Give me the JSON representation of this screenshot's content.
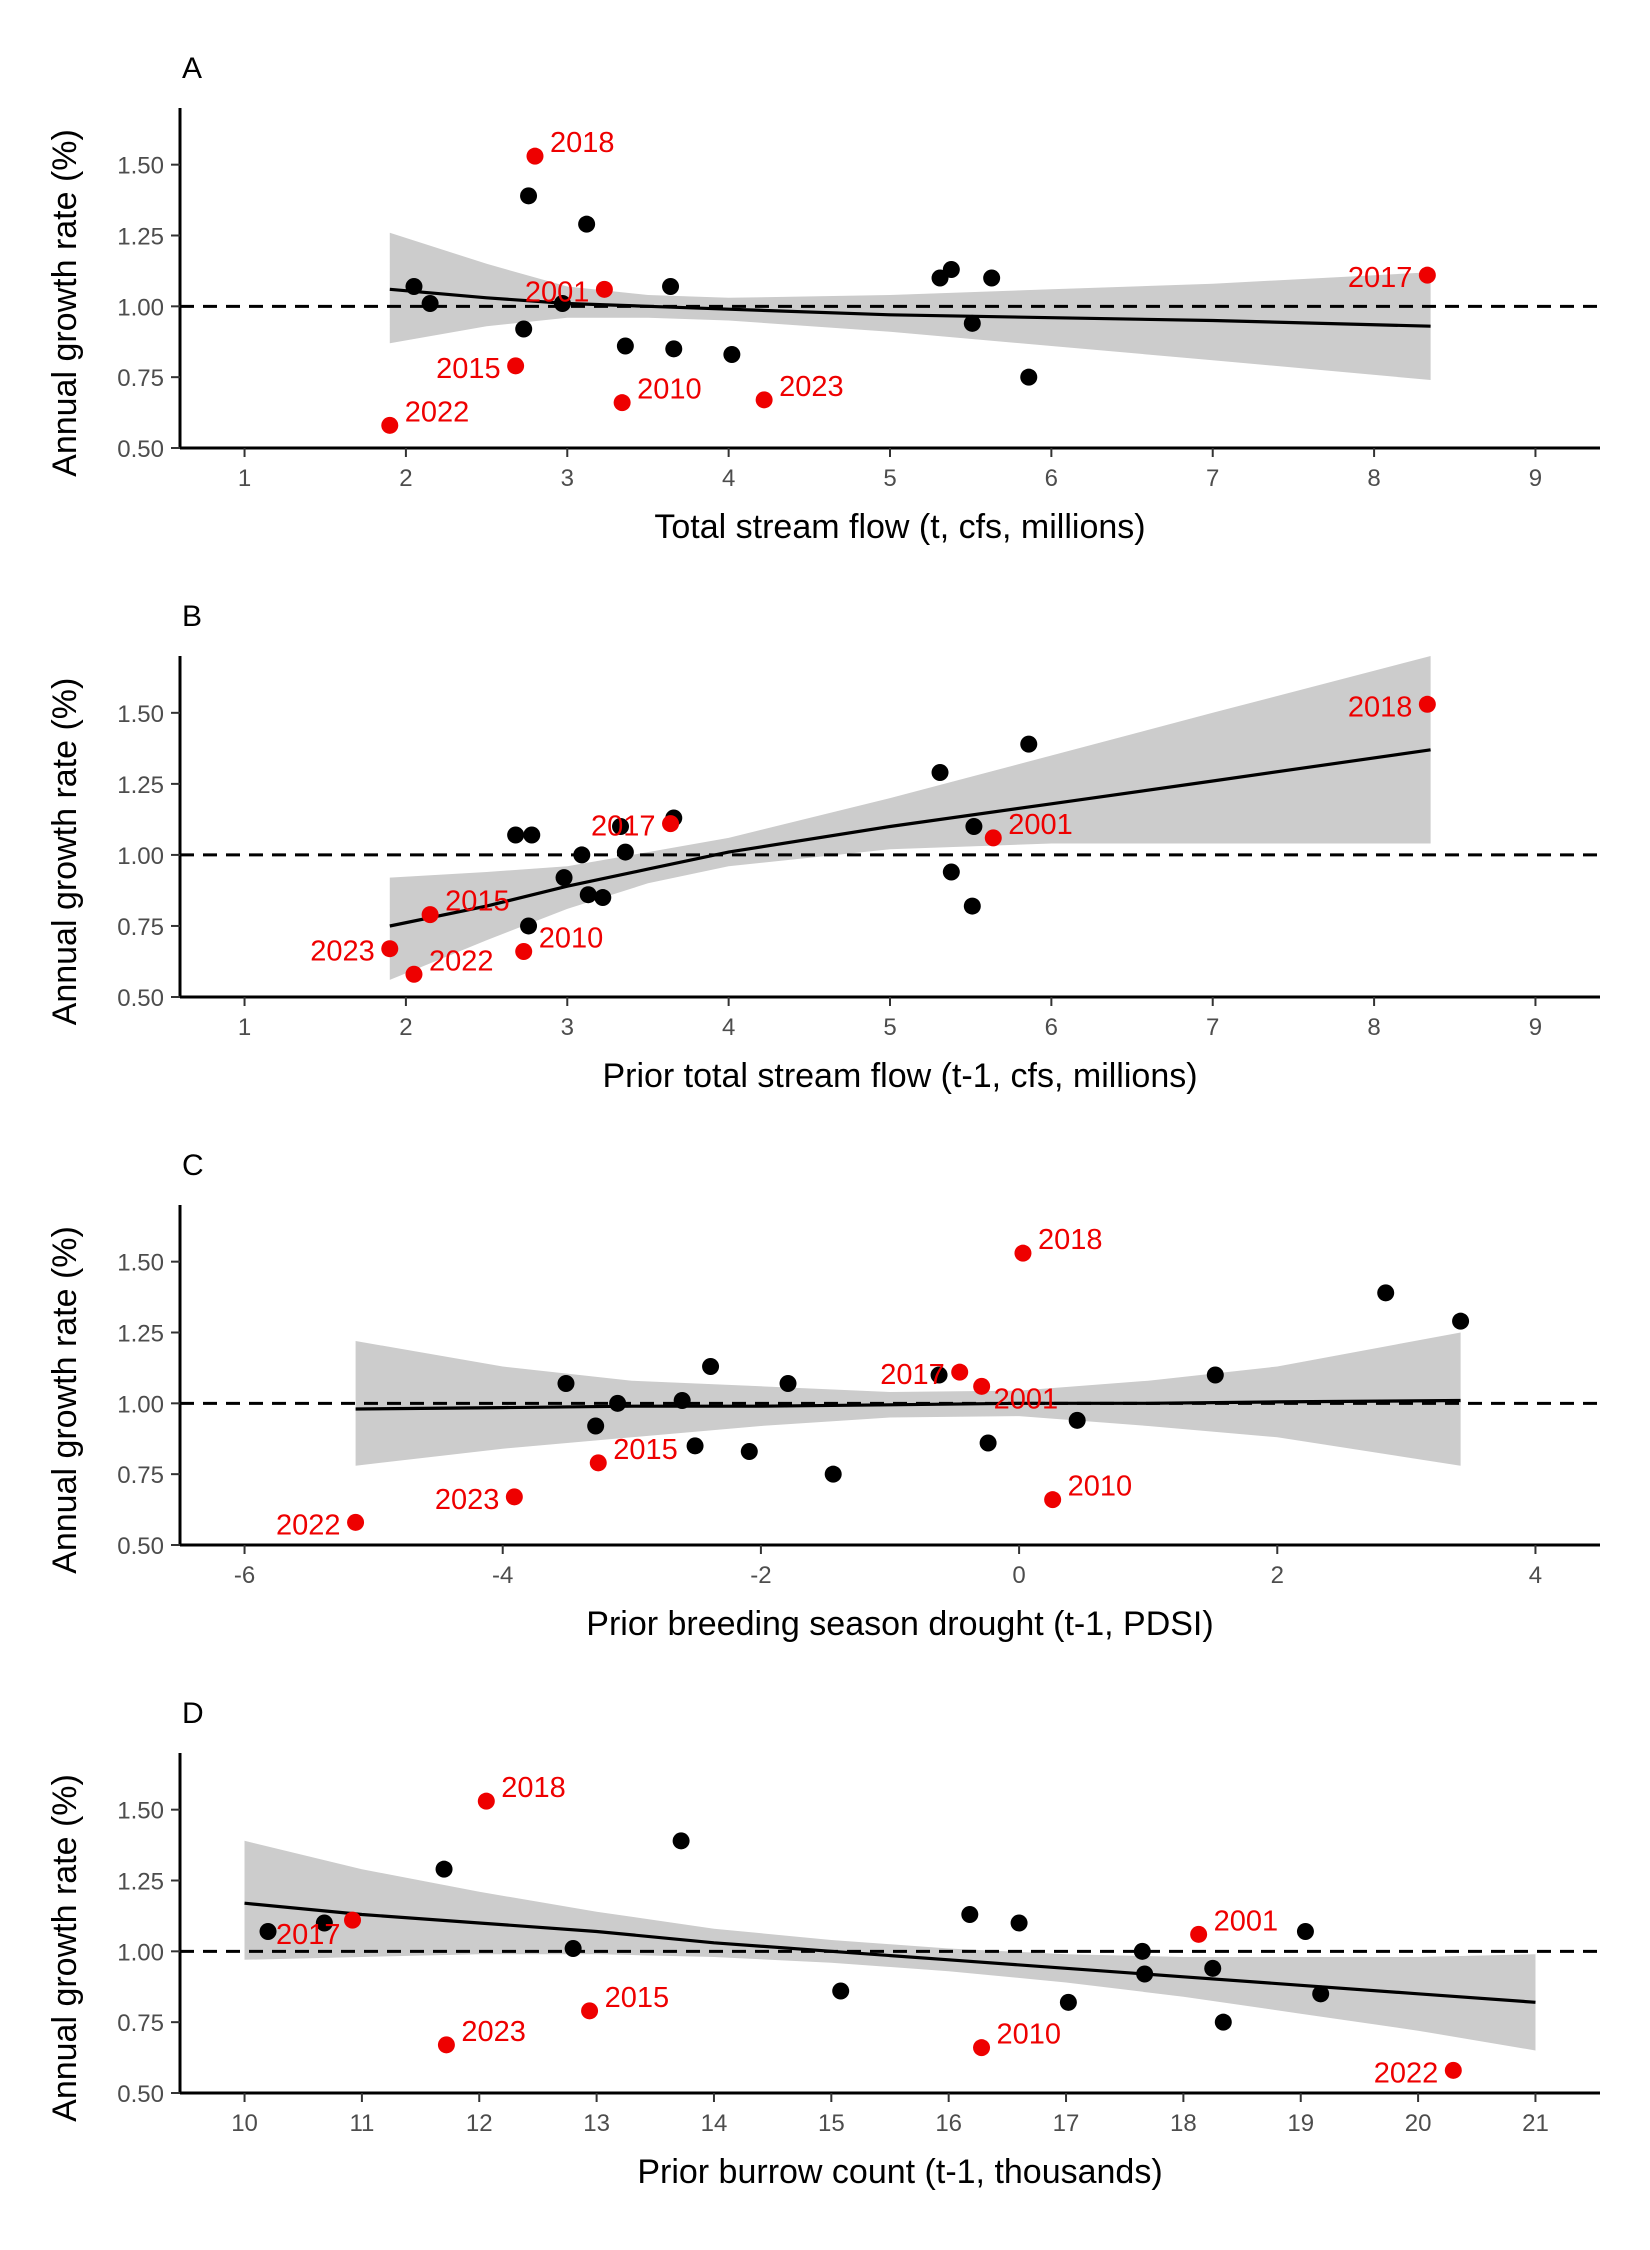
{
  "colors": {
    "highlight": "#ee0000",
    "point": "#000000",
    "band": "#cccccc",
    "line": "#000000",
    "tick_text": "#4d4d4d"
  },
  "chart_data": [
    {
      "type": "scatter",
      "panel": "A",
      "xlabel": "Total stream flow (t, cfs, millions)",
      "ylabel": "Annual growth rate (%)",
      "xlim": [
        0.6,
        9.4
      ],
      "ylim": [
        0.5,
        1.7
      ],
      "xticks": [
        1,
        2,
        3,
        4,
        5,
        6,
        7,
        8,
        9
      ],
      "yticks": [
        0.5,
        0.75,
        1.0,
        1.25,
        1.5
      ],
      "ytick_labels": [
        "0.50",
        "0.75",
        "1.00",
        "1.25",
        "1.50"
      ],
      "reference_line": 1.0,
      "grid": false,
      "points": [
        {
          "x": 2.05,
          "y": 1.07
        },
        {
          "x": 2.15,
          "y": 1.01
        },
        {
          "x": 2.73,
          "y": 0.92
        },
        {
          "x": 2.76,
          "y": 1.39
        },
        {
          "x": 2.97,
          "y": 1.01
        },
        {
          "x": 3.12,
          "y": 1.29
        },
        {
          "x": 3.36,
          "y": 0.86
        },
        {
          "x": 3.64,
          "y": 1.07
        },
        {
          "x": 3.66,
          "y": 0.85
        },
        {
          "x": 4.02,
          "y": 0.83
        },
        {
          "x": 5.31,
          "y": 1.1
        },
        {
          "x": 5.38,
          "y": 1.13
        },
        {
          "x": 5.51,
          "y": 0.94
        },
        {
          "x": 5.63,
          "y": 1.1
        },
        {
          "x": 5.86,
          "y": 0.75
        }
      ],
      "highlighted": [
        {
          "year": "2018",
          "x": 2.8,
          "y": 1.53,
          "label_side": "right"
        },
        {
          "year": "2001",
          "x": 3.23,
          "y": 1.06,
          "label_side": "left"
        },
        {
          "year": "2015",
          "x": 2.68,
          "y": 0.79,
          "label_side": "left"
        },
        {
          "year": "2022",
          "x": 1.9,
          "y": 0.58,
          "label_side": "right"
        },
        {
          "year": "2010",
          "x": 3.34,
          "y": 0.66,
          "label_side": "right"
        },
        {
          "year": "2023",
          "x": 4.22,
          "y": 0.67,
          "label_side": "right"
        },
        {
          "year": "2017",
          "x": 8.33,
          "y": 1.11,
          "label_side": "left"
        }
      ],
      "fit": {
        "x": [
          1.9,
          2.5,
          3.0,
          3.5,
          4.0,
          5.0,
          6.0,
          7.0,
          8.35
        ],
        "y": [
          1.06,
          1.03,
          1.01,
          1.0,
          0.99,
          0.97,
          0.96,
          0.95,
          0.93
        ],
        "low": [
          0.87,
          0.93,
          0.96,
          0.96,
          0.95,
          0.91,
          0.86,
          0.81,
          0.74
        ],
        "high": [
          1.26,
          1.15,
          1.07,
          1.04,
          1.03,
          1.04,
          1.06,
          1.08,
          1.12
        ]
      }
    },
    {
      "type": "scatter",
      "panel": "B",
      "xlabel": "Prior total stream flow (t-1, cfs, millions)",
      "ylabel": "Annual growth rate (%)",
      "xlim": [
        0.6,
        9.4
      ],
      "ylim": [
        0.5,
        1.7
      ],
      "xticks": [
        1,
        2,
        3,
        4,
        5,
        6,
        7,
        8,
        9
      ],
      "yticks": [
        0.5,
        0.75,
        1.0,
        1.25,
        1.5
      ],
      "ytick_labels": [
        "0.50",
        "0.75",
        "1.00",
        "1.25",
        "1.50"
      ],
      "reference_line": 1.0,
      "grid": false,
      "points": [
        {
          "x": 2.68,
          "y": 1.07
        },
        {
          "x": 2.78,
          "y": 1.07
        },
        {
          "x": 2.76,
          "y": 0.75
        },
        {
          "x": 2.98,
          "y": 0.92
        },
        {
          "x": 3.09,
          "y": 1.0
        },
        {
          "x": 3.13,
          "y": 0.86
        },
        {
          "x": 3.22,
          "y": 0.85
        },
        {
          "x": 3.33,
          "y": 1.1
        },
        {
          "x": 3.36,
          "y": 1.01
        },
        {
          "x": 3.66,
          "y": 1.13
        },
        {
          "x": 5.31,
          "y": 1.29
        },
        {
          "x": 5.38,
          "y": 0.94
        },
        {
          "x": 5.51,
          "y": 0.82
        },
        {
          "x": 5.52,
          "y": 1.1
        },
        {
          "x": 5.86,
          "y": 1.39
        }
      ],
      "highlighted": [
        {
          "year": "2018",
          "x": 8.33,
          "y": 1.53,
          "label_side": "left"
        },
        {
          "year": "2017",
          "x": 3.64,
          "y": 1.11,
          "label_side": "left"
        },
        {
          "year": "2001",
          "x": 5.64,
          "y": 1.06,
          "label_side": "right"
        },
        {
          "year": "2015",
          "x": 2.15,
          "y": 0.79,
          "label_side": "right"
        },
        {
          "year": "2023",
          "x": 1.9,
          "y": 0.67,
          "label_side": "left"
        },
        {
          "year": "2022",
          "x": 2.05,
          "y": 0.58,
          "label_side": "right"
        },
        {
          "year": "2010",
          "x": 2.73,
          "y": 0.66,
          "label_side": "right"
        }
      ],
      "fit": {
        "x": [
          1.9,
          2.5,
          3.0,
          3.5,
          4.0,
          5.0,
          6.0,
          7.0,
          8.35
        ],
        "y": [
          0.75,
          0.82,
          0.89,
          0.95,
          1.01,
          1.1,
          1.18,
          1.26,
          1.37
        ],
        "low": [
          0.56,
          0.7,
          0.81,
          0.9,
          0.96,
          1.02,
          1.04,
          1.04,
          1.04
        ],
        "high": [
          0.92,
          0.94,
          0.96,
          1.01,
          1.06,
          1.2,
          1.35,
          1.5,
          1.7
        ]
      }
    },
    {
      "type": "scatter",
      "panel": "C",
      "xlabel": "Prior breeding season drought (t-1, PDSI)",
      "ylabel": "Annual growth rate (%)",
      "xlim": [
        -6.5,
        4.5
      ],
      "ylim": [
        0.5,
        1.7
      ],
      "xticks": [
        -6,
        -4,
        -2,
        0,
        2,
        4
      ],
      "yticks": [
        0.5,
        0.75,
        1.0,
        1.25,
        1.5
      ],
      "ytick_labels": [
        "0.50",
        "0.75",
        "1.00",
        "1.25",
        "1.50"
      ],
      "reference_line": 1.0,
      "grid": false,
      "points": [
        {
          "x": -3.51,
          "y": 1.07
        },
        {
          "x": -3.28,
          "y": 0.92
        },
        {
          "x": -3.11,
          "y": 1.0
        },
        {
          "x": -2.61,
          "y": 1.01
        },
        {
          "x": -2.51,
          "y": 0.85
        },
        {
          "x": -2.39,
          "y": 1.13
        },
        {
          "x": -2.09,
          "y": 0.83
        },
        {
          "x": -1.79,
          "y": 1.07
        },
        {
          "x": -1.44,
          "y": 0.75
        },
        {
          "x": -0.62,
          "y": 1.1
        },
        {
          "x": -0.24,
          "y": 0.86
        },
        {
          "x": 0.45,
          "y": 0.94
        },
        {
          "x": 1.52,
          "y": 1.1
        },
        {
          "x": 2.84,
          "y": 1.39
        },
        {
          "x": 3.42,
          "y": 1.29
        }
      ],
      "highlighted": [
        {
          "year": "2018",
          "x": 0.03,
          "y": 1.53,
          "label_side": "right"
        },
        {
          "year": "2017",
          "x": -0.46,
          "y": 1.11,
          "label_side": "left"
        },
        {
          "year": "2001",
          "x": -0.29,
          "y": 1.06,
          "label_side": "right-below"
        },
        {
          "year": "2015",
          "x": -3.26,
          "y": 0.79,
          "label_side": "right"
        },
        {
          "year": "2023",
          "x": -3.91,
          "y": 0.67,
          "label_side": "left"
        },
        {
          "year": "2022",
          "x": -5.14,
          "y": 0.58,
          "label_side": "left"
        },
        {
          "year": "2010",
          "x": 0.26,
          "y": 0.66,
          "label_side": "right"
        }
      ],
      "fit": {
        "x": [
          -5.14,
          -4.0,
          -3.0,
          -2.0,
          -1.0,
          0.0,
          1.0,
          2.0,
          3.42
        ],
        "y": [
          0.98,
          0.985,
          0.99,
          0.99,
          0.995,
          1.0,
          1.0,
          1.005,
          1.01
        ],
        "low": [
          0.78,
          0.84,
          0.88,
          0.92,
          0.95,
          0.955,
          0.92,
          0.88,
          0.78
        ],
        "high": [
          1.22,
          1.13,
          1.08,
          1.06,
          1.04,
          1.045,
          1.08,
          1.13,
          1.25
        ]
      }
    },
    {
      "type": "scatter",
      "panel": "D",
      "xlabel": "Prior burrow count (t-1, thousands)",
      "ylabel": "Annual growth rate (%)",
      "xlim": [
        9.45,
        21.55
      ],
      "ylim": [
        0.5,
        1.7
      ],
      "xticks": [
        10,
        11,
        12,
        13,
        14,
        15,
        16,
        17,
        18,
        19,
        20,
        21
      ],
      "yticks": [
        0.5,
        0.75,
        1.0,
        1.25,
        1.5
      ],
      "ytick_labels": [
        "0.50",
        "0.75",
        "1.00",
        "1.25",
        "1.50"
      ],
      "reference_line": 1.0,
      "grid": false,
      "points": [
        {
          "x": 10.2,
          "y": 1.07
        },
        {
          "x": 10.68,
          "y": 1.1
        },
        {
          "x": 11.7,
          "y": 1.29
        },
        {
          "x": 12.8,
          "y": 1.01
        },
        {
          "x": 13.72,
          "y": 1.39
        },
        {
          "x": 15.08,
          "y": 0.86
        },
        {
          "x": 16.18,
          "y": 1.13
        },
        {
          "x": 16.6,
          "y": 1.1
        },
        {
          "x": 17.02,
          "y": 0.82
        },
        {
          "x": 17.65,
          "y": 1.0
        },
        {
          "x": 17.67,
          "y": 0.92
        },
        {
          "x": 18.25,
          "y": 0.94
        },
        {
          "x": 18.34,
          "y": 0.75
        },
        {
          "x": 19.04,
          "y": 1.07
        },
        {
          "x": 19.17,
          "y": 0.85
        }
      ],
      "highlighted": [
        {
          "year": "2018",
          "x": 12.06,
          "y": 1.53,
          "label_side": "right"
        },
        {
          "year": "2017",
          "x": 10.92,
          "y": 1.11,
          "label_side": "left-below"
        },
        {
          "year": "2001",
          "x": 18.13,
          "y": 1.06,
          "label_side": "right"
        },
        {
          "year": "2015",
          "x": 12.94,
          "y": 0.79,
          "label_side": "right"
        },
        {
          "year": "2023",
          "x": 11.72,
          "y": 0.67,
          "label_side": "right"
        },
        {
          "year": "2010",
          "x": 16.28,
          "y": 0.66,
          "label_side": "right"
        },
        {
          "year": "2022",
          "x": 20.3,
          "y": 0.58,
          "label_side": "left"
        }
      ],
      "fit": {
        "x": [
          10.0,
          11.0,
          12.0,
          13.0,
          14.0,
          15.0,
          16.0,
          17.0,
          18.0,
          19.0,
          20.0,
          21.0
        ],
        "y": [
          1.17,
          1.13,
          1.1,
          1.07,
          1.03,
          1.0,
          0.97,
          0.94,
          0.91,
          0.88,
          0.85,
          0.82
        ],
        "low": [
          0.97,
          0.98,
          0.99,
          0.99,
          0.98,
          0.96,
          0.93,
          0.89,
          0.84,
          0.78,
          0.72,
          0.65
        ],
        "high": [
          1.39,
          1.29,
          1.21,
          1.14,
          1.08,
          1.04,
          1.01,
          0.99,
          0.98,
          0.98,
          0.98,
          0.99
        ]
      }
    }
  ]
}
